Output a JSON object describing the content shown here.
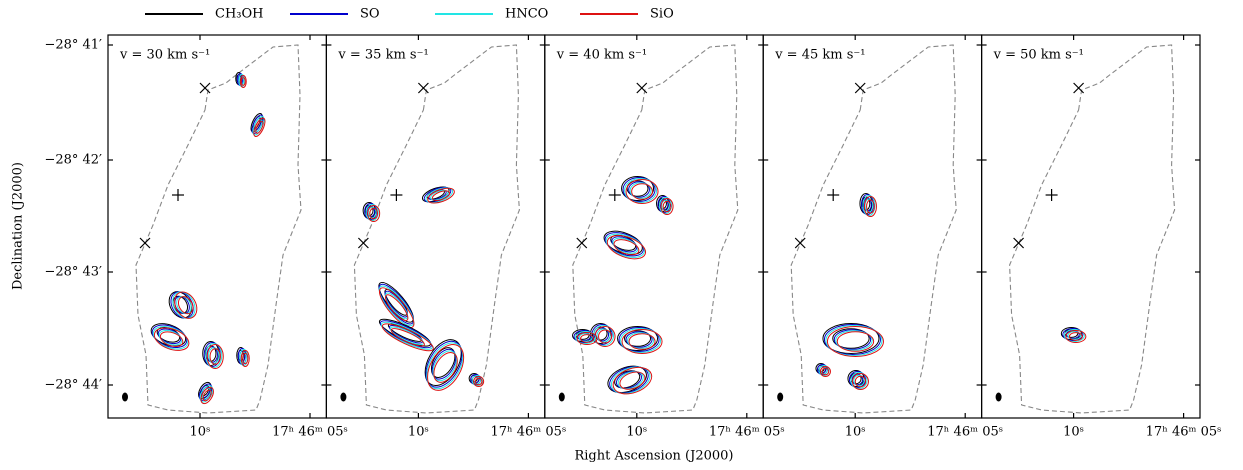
{
  "legend": [
    {
      "label": "CH₃OH",
      "color": "#000000"
    },
    {
      "label": "SO",
      "color": "#0000cc"
    },
    {
      "label": "HNCO",
      "color": "#22e5e5"
    },
    {
      "label": "SiO",
      "color": "#dd1111"
    }
  ],
  "panels": [
    {
      "label": "v = 30 km s⁻¹"
    },
    {
      "label": "v = 35 km s⁻¹"
    },
    {
      "label": "v = 40 km s⁻¹"
    },
    {
      "label": "v = 45 km s⁻¹"
    },
    {
      "label": "v = 50 km s⁻¹"
    }
  ],
  "y_axis": {
    "label": "Declination (J2000)",
    "ticks": [
      "−28° 41′",
      "−28° 42′",
      "−28° 43′",
      "−28° 44′"
    ]
  },
  "x_axis": {
    "label": "Right Ascension (J2000)",
    "ticks": [
      "10ˢ",
      "17ʰ 46ᵐ 05ˢ"
    ]
  }
}
